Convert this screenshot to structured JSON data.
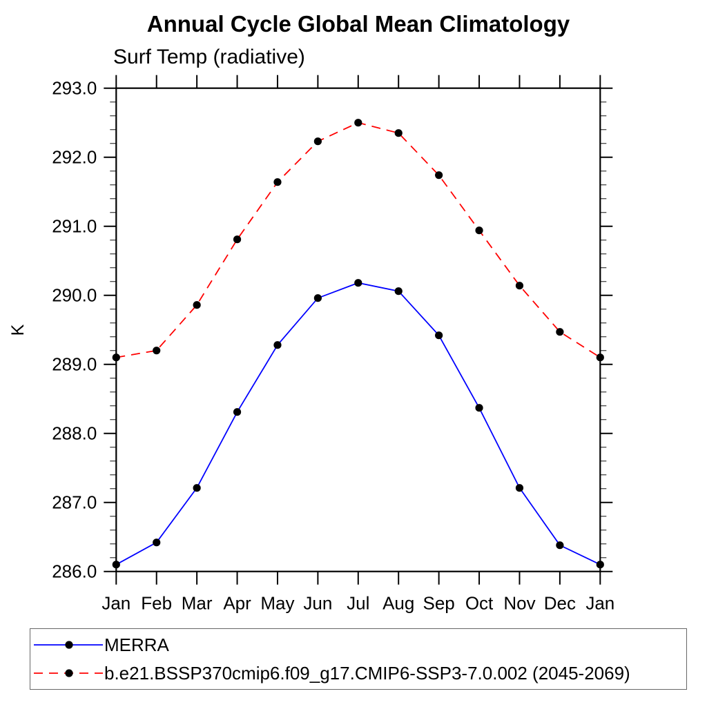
{
  "title": "Annual Cycle Global Mean Climatology",
  "subtitle": "Surf Temp (radiative)",
  "ylabel": "K",
  "colors": {
    "background": "#ffffff",
    "axis": "#000000",
    "minor_tick": "#444444",
    "marker": "#000000",
    "series_blue": "#0000ff",
    "series_red": "#ff0000",
    "legend_border": "#666666"
  },
  "chart_data": {
    "type": "line",
    "x_categories": [
      "Jan",
      "Feb",
      "Mar",
      "Apr",
      "May",
      "Jun",
      "Jul",
      "Aug",
      "Sep",
      "Oct",
      "Nov",
      "Dec",
      "Jan"
    ],
    "ylim": [
      286.0,
      293.0
    ],
    "ytick_step": 1.0,
    "yminor_step": 0.2,
    "ytick_labels": [
      "286.0",
      "287.0",
      "288.0",
      "289.0",
      "290.0",
      "291.0",
      "292.0",
      "293.0"
    ],
    "grid": false,
    "legend_position": "bottom-left-outside",
    "series": [
      {
        "name": "MERRA",
        "color": "#0000ff",
        "line_style": "solid",
        "marker": "black-dot",
        "values": [
          286.1,
          286.42,
          287.21,
          288.31,
          289.28,
          289.96,
          290.18,
          290.06,
          289.42,
          288.37,
          287.21,
          286.38,
          286.1
        ]
      },
      {
        "name": "b.e21.BSSP370cmip6.f09_g17.CMIP6-SSP3-7.0.002 (2045-2069)",
        "color": "#ff0000",
        "line_style": "dashed",
        "marker": "black-dot",
        "values": [
          289.1,
          289.2,
          289.86,
          290.81,
          291.64,
          292.23,
          292.5,
          292.35,
          291.74,
          290.94,
          290.14,
          289.47,
          289.1
        ]
      }
    ]
  }
}
